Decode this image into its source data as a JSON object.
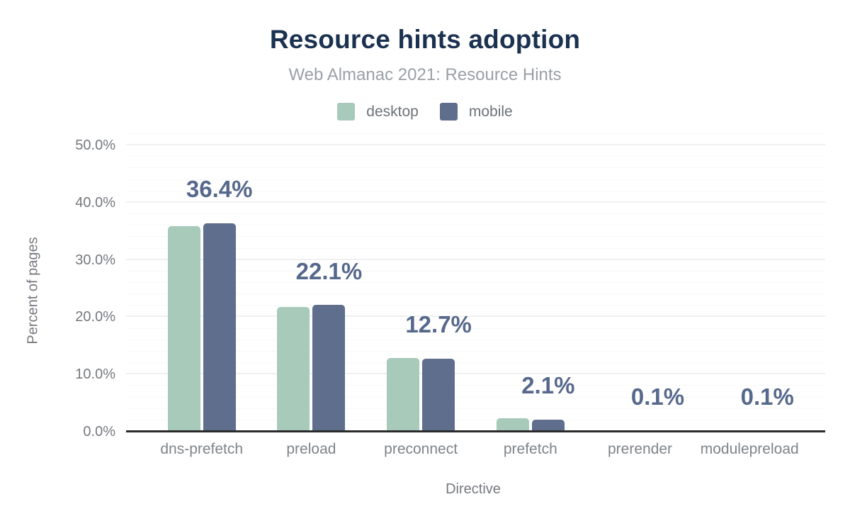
{
  "header": {
    "title": "Resource hints adoption",
    "subtitle": "Web Almanac 2021: Resource Hints"
  },
  "legend": [
    {
      "label": "desktop",
      "color": "#a7cabb"
    },
    {
      "label": "mobile",
      "color": "#5e6e8c"
    }
  ],
  "chart_data": {
    "type": "bar",
    "title": "Resource hints adoption",
    "subtitle": "Web Almanac 2021: Resource Hints",
    "categories": [
      "dns-prefetch",
      "preload",
      "preconnect",
      "prefetch",
      "prerender",
      "modulepreload"
    ],
    "series": [
      {
        "name": "desktop",
        "color": "#a7cabb",
        "values": [
          35.9,
          21.8,
          12.9,
          2.3,
          0.1,
          0.1
        ]
      },
      {
        "name": "mobile",
        "color": "#5e6e8c",
        "values": [
          36.4,
          22.1,
          12.7,
          2.1,
          0.1,
          0.1
        ]
      }
    ],
    "data_labels": {
      "series": "mobile",
      "values": [
        "36.4%",
        "22.1%",
        "12.7%",
        "2.1%",
        "0.1%",
        "0.1%"
      ],
      "color": "#56688c"
    },
    "xlabel": "Directive",
    "ylabel": "Percent of pages",
    "y_ticks": [
      "0.0%",
      "10.0%",
      "20.0%",
      "30.0%",
      "40.0%",
      "50.0%"
    ],
    "ylim": [
      0,
      52
    ],
    "grid": {
      "major_every": 10,
      "minor_every": 2,
      "legend_position": "top"
    }
  },
  "colors": {
    "title": "#1b3150",
    "subtitle": "#9aa0a6",
    "axis_line": "#2b2b2b",
    "tick_text": "#75787e",
    "category_text": "#7f8489",
    "grid_major": "#f0f0f0",
    "grid_minor": "#f8f8f8"
  }
}
